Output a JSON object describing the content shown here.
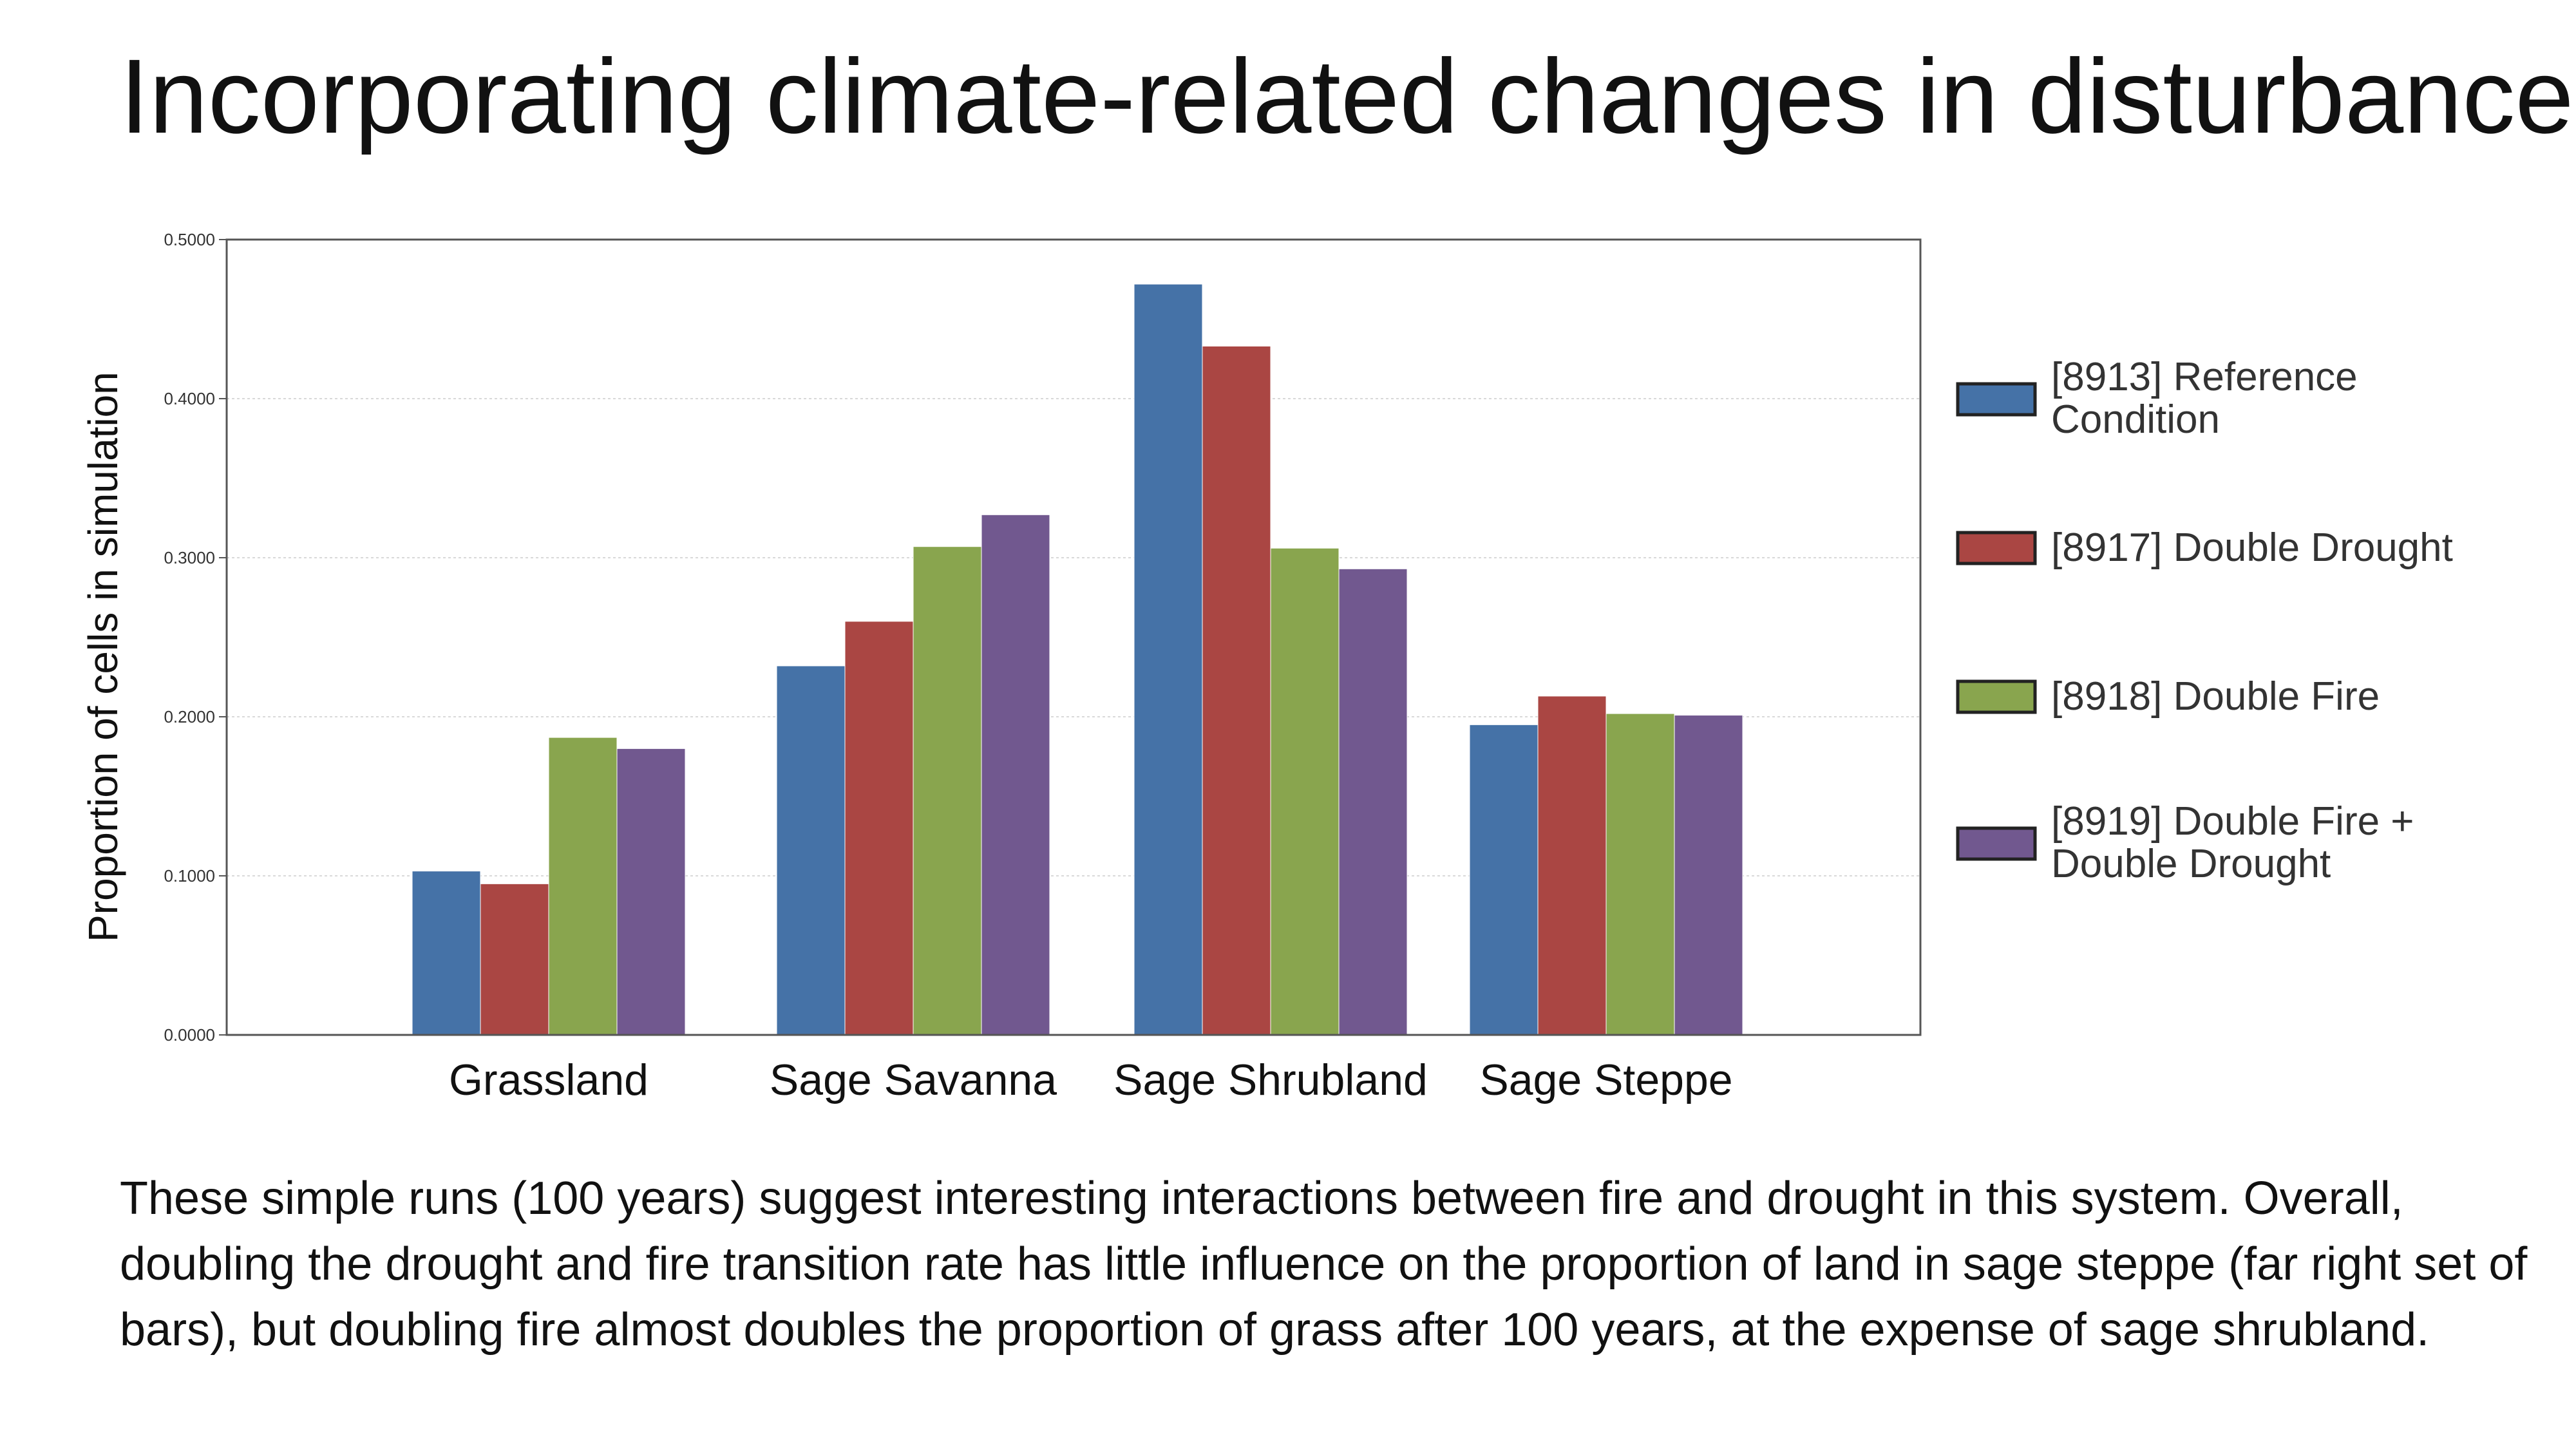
{
  "slide": {
    "title": "Incorporating climate-related changes in disturbance",
    "caption": "These simple runs (100 years) suggest interesting interactions between fire and drought in this system. Overall, doubling the drought and fire transition rate has little influence on the proportion of land in sage steppe (far right set of bars), but doubling fire almost doubles the proportion of grass after 100 years, at the expense of sage shrubland."
  },
  "chart_data": {
    "type": "bar",
    "title": "",
    "xlabel": "",
    "ylabel": "Proportion of cells in simulation",
    "ylim": [
      0,
      0.5
    ],
    "yticks": [
      0,
      0.1,
      0.2,
      0.3,
      0.4,
      0.5
    ],
    "ytick_labels": [
      "0.0000",
      "0.1000",
      "0.2000",
      "0.3000",
      "0.4000",
      "0.5000"
    ],
    "grid": true,
    "legend_position": "right",
    "categories": [
      "Grassland",
      "Sage Savanna",
      "Sage Shrubland",
      "Sage Steppe"
    ],
    "series": [
      {
        "name": "[8913] Reference Condition",
        "color": "#4572A7",
        "values": [
          0.103,
          0.232,
          0.472,
          0.195
        ]
      },
      {
        "name": "[8917] Double Drought",
        "color": "#AA4643",
        "values": [
          0.095,
          0.26,
          0.433,
          0.213
        ]
      },
      {
        "name": "[8918] Double Fire",
        "color": "#89A54E",
        "values": [
          0.187,
          0.307,
          0.306,
          0.202
        ]
      },
      {
        "name": "[8919] Double Fire + Double Drought",
        "color": "#71588F",
        "values": [
          0.18,
          0.327,
          0.293,
          0.201
        ]
      }
    ]
  }
}
